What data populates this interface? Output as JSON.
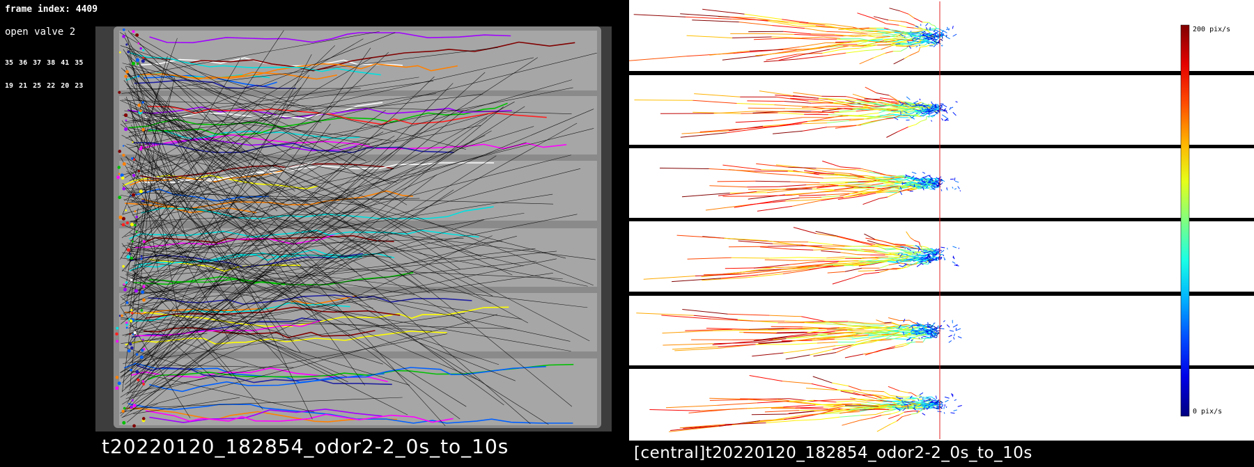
{
  "left_panel": {
    "frame_label": "frame index: 4409",
    "status": "open valve 2",
    "ids_row1": "35 36 37 38 41 35",
    "ids_row2": "19 21 25 22 20 23",
    "title": "t20220120_182854_odor2-2_0s_to_10s"
  },
  "right_panel": {
    "title": "[central]t20220120_182854_odor2-2_0s_to_10s",
    "colorbar_max_label": "200 pix/s",
    "colorbar_min_label": "0 pix/s",
    "arena_count": 6
  },
  "colors": {
    "background": "#000000",
    "arena_bg": "#ffffff",
    "odor_line": "#e02020",
    "video_bg": "#3d3d3d",
    "channel": "#9a9a9a"
  },
  "icons": {
    "colorbar": "jet-gradient-colorbar"
  }
}
